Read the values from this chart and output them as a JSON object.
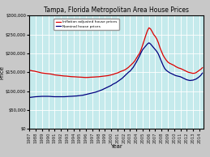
{
  "title": "Tampa, Florida Metropolitan Area House Prices",
  "xlabel": "Year",
  "ylabel": "Price",
  "background_color": "#c5eaec",
  "grid_color": "#ffffff",
  "outer_bg": "#c8c8c8",
  "ylim": [
    0,
    300000
  ],
  "ytick_values": [
    0,
    50000,
    100000,
    150000,
    200000,
    250000,
    300000
  ],
  "ytick_labels": [
    "$0",
    "$50,000",
    "$100,000",
    "$150,000",
    "$200,000",
    "$250,000",
    "$300,000"
  ],
  "legend_inflation": "Inflation adjusted house prices",
  "legend_nominal": "Nominal house prices",
  "line_color_inflation": "#dd0000",
  "line_color_nominal": "#000080",
  "legend_box_color": "#ffffff",
  "title_fontsize": 5.5,
  "axis_label_fontsize": 5,
  "tick_fontsize": 3.8,
  "legend_fontsize": 3.2,
  "line_width": 0.9,
  "years_infl": [
    1987.0,
    1987.25,
    1987.5,
    1987.75,
    1988.0,
    1988.25,
    1988.5,
    1988.75,
    1989.0,
    1989.25,
    1989.5,
    1989.75,
    1990.0,
    1990.25,
    1990.5,
    1990.75,
    1991.0,
    1991.25,
    1991.5,
    1991.75,
    1992.0,
    1992.25,
    1992.5,
    1992.75,
    1993.0,
    1993.25,
    1993.5,
    1993.75,
    1994.0,
    1994.25,
    1994.5,
    1994.75,
    1995.0,
    1995.25,
    1995.5,
    1995.75,
    1996.0,
    1996.25,
    1996.5,
    1996.75,
    1997.0,
    1997.25,
    1997.5,
    1997.75,
    1998.0,
    1998.25,
    1998.5,
    1998.75,
    1999.0,
    1999.25,
    1999.5,
    1999.75,
    2000.0,
    2000.25,
    2000.5,
    2000.75,
    2001.0,
    2001.25,
    2001.5,
    2001.75,
    2002.0,
    2002.25,
    2002.5,
    2002.75,
    2003.0,
    2003.25,
    2003.5,
    2003.75,
    2004.0,
    2004.25,
    2004.5,
    2004.75,
    2005.0,
    2005.25,
    2005.5,
    2005.75,
    2006.0,
    2006.25,
    2006.5,
    2006.75,
    2007.0,
    2007.25,
    2007.5,
    2007.75,
    2008.0,
    2008.25,
    2008.5,
    2008.75,
    2009.0,
    2009.25,
    2009.5,
    2009.75,
    2010.0,
    2010.25,
    2010.5,
    2010.75,
    2011.0,
    2011.25,
    2011.5,
    2011.75,
    2012.0,
    2012.25,
    2012.5,
    2012.75,
    2013.0,
    2013.25,
    2013.5,
    2013.75,
    2014.0,
    2014.25,
    2014.5
  ],
  "infl_adj": [
    155000,
    154500,
    153500,
    153000,
    152000,
    151000,
    150000,
    149000,
    148000,
    147500,
    147000,
    146500,
    146000,
    145500,
    145000,
    144000,
    143000,
    142500,
    142000,
    141500,
    141000,
    140500,
    140000,
    139800,
    139500,
    139000,
    138500,
    138200,
    138000,
    137800,
    137500,
    137200,
    137000,
    136800,
    136500,
    136200,
    136000,
    136200,
    136500,
    136800,
    137000,
    137200,
    137500,
    137800,
    138000,
    138500,
    139000,
    139500,
    140000,
    140500,
    141000,
    142000,
    143000,
    144000,
    145500,
    147000,
    148000,
    150000,
    152000,
    153500,
    155000,
    157000,
    160000,
    163000,
    167000,
    171000,
    175000,
    180000,
    187000,
    194000,
    200000,
    210000,
    222000,
    235000,
    248000,
    260000,
    268000,
    265000,
    258000,
    250000,
    245000,
    238000,
    228000,
    215000,
    205000,
    195000,
    188000,
    182000,
    177000,
    174000,
    172000,
    170000,
    168000,
    165000,
    163000,
    161000,
    160000,
    158000,
    156000,
    154000,
    152000,
    150000,
    149000,
    148000,
    147000,
    147500,
    149000,
    152000,
    155000,
    158000,
    162000
  ],
  "years_nom": [
    1987.0,
    1987.25,
    1987.5,
    1987.75,
    1988.0,
    1988.25,
    1988.5,
    1988.75,
    1989.0,
    1989.25,
    1989.5,
    1989.75,
    1990.0,
    1990.25,
    1990.5,
    1990.75,
    1991.0,
    1991.25,
    1991.5,
    1991.75,
    1992.0,
    1992.25,
    1992.5,
    1992.75,
    1993.0,
    1993.25,
    1993.5,
    1993.75,
    1994.0,
    1994.25,
    1994.5,
    1994.75,
    1995.0,
    1995.25,
    1995.5,
    1995.75,
    1996.0,
    1996.25,
    1996.5,
    1996.75,
    1997.0,
    1997.25,
    1997.5,
    1997.75,
    1998.0,
    1998.25,
    1998.5,
    1998.75,
    1999.0,
    1999.25,
    1999.5,
    1999.75,
    2000.0,
    2000.25,
    2000.5,
    2000.75,
    2001.0,
    2001.25,
    2001.5,
    2001.75,
    2002.0,
    2002.25,
    2002.5,
    2002.75,
    2003.0,
    2003.25,
    2003.5,
    2003.75,
    2004.0,
    2004.25,
    2004.5,
    2004.75,
    2005.0,
    2005.25,
    2005.5,
    2005.75,
    2006.0,
    2006.25,
    2006.5,
    2006.75,
    2007.0,
    2007.25,
    2007.5,
    2007.75,
    2008.0,
    2008.25,
    2008.5,
    2008.75,
    2009.0,
    2009.25,
    2009.5,
    2009.75,
    2010.0,
    2010.25,
    2010.5,
    2010.75,
    2011.0,
    2011.25,
    2011.5,
    2011.75,
    2012.0,
    2012.25,
    2012.5,
    2012.75,
    2013.0,
    2013.25,
    2013.5,
    2013.75,
    2014.0,
    2014.25,
    2014.5
  ],
  "nominal": [
    83000,
    83500,
    84000,
    84500,
    85000,
    85200,
    85500,
    85700,
    86000,
    86000,
    86000,
    86000,
    86000,
    85800,
    85500,
    85200,
    85000,
    85000,
    85000,
    85000,
    85000,
    85000,
    85000,
    85200,
    85500,
    85800,
    86000,
    86200,
    86500,
    86800,
    87000,
    87500,
    88000,
    88500,
    89000,
    90000,
    91000,
    92000,
    93000,
    94000,
    95000,
    96000,
    97000,
    98500,
    100000,
    101500,
    103000,
    105000,
    107000,
    109000,
    111000,
    113000,
    115000,
    118000,
    120000,
    122000,
    125000,
    128000,
    131000,
    134000,
    138000,
    142000,
    146000,
    150000,
    153000,
    158000,
    163000,
    170000,
    177000,
    185000,
    193000,
    202000,
    210000,
    215000,
    220000,
    225000,
    228000,
    225000,
    220000,
    215000,
    210000,
    205000,
    198000,
    188000,
    178000,
    168000,
    160000,
    155000,
    152000,
    149000,
    147000,
    145000,
    143000,
    141000,
    140000,
    139000,
    138000,
    136000,
    134000,
    132000,
    130000,
    129000,
    128000,
    128500,
    129000,
    130500,
    132000,
    135000,
    138000,
    142000,
    148000
  ],
  "xtick_years": [
    1987,
    1988,
    1989,
    1990,
    1991,
    1992,
    1993,
    1994,
    1995,
    1996,
    1997,
    1998,
    1999,
    2000,
    2001,
    2002,
    2003,
    2004,
    2005,
    2006,
    2007,
    2008,
    2009,
    2010,
    2011,
    2012,
    2013,
    2014
  ]
}
